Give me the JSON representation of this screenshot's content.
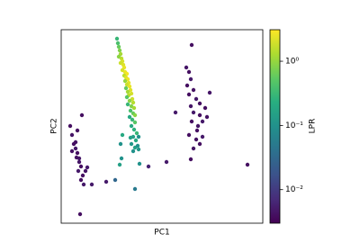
{
  "chart_data": {
    "type": "scatter",
    "xlabel": "PC1",
    "ylabel": "PC2",
    "clabel": "LPR",
    "xlim": [
      0,
      224
    ],
    "ylim": [
      0,
      215
    ],
    "colormap": "viridis",
    "cscale": "log",
    "clim": [
      0.003,
      3.1
    ],
    "cticks": [
      {
        "value": 0.01,
        "label": "10⁻²"
      },
      {
        "value": 0.1,
        "label": "10⁻¹"
      },
      {
        "value": 1,
        "label": "10⁰"
      }
    ],
    "x": [
      10,
      12,
      14,
      16,
      18,
      17,
      20,
      22,
      19,
      24,
      27,
      22,
      25,
      21,
      16,
      18,
      20,
      29,
      23,
      12,
      50,
      60,
      67,
      82,
      97,
      117,
      127,
      207,
      65,
      87,
      34,
      145,
      139,
      142,
      144,
      140,
      147,
      165,
      142,
      150,
      154,
      144,
      160,
      147,
      154,
      162,
      145,
      152,
      157,
      142,
      150,
      154,
      147,
      144,
      157,
      151,
      62,
      63,
      64,
      65,
      66,
      64,
      67,
      68,
      66,
      69,
      70,
      68,
      71,
      73,
      70,
      72,
      74,
      71,
      75,
      73,
      76,
      72,
      77,
      74,
      78,
      75,
      73,
      79,
      76,
      80,
      74,
      78,
      81,
      77,
      80,
      82,
      76,
      79,
      82,
      78,
      81,
      84,
      80,
      83,
      78,
      82,
      85,
      80,
      86,
      77,
      68,
      66,
      86
    ],
    "y": [
      108,
      98,
      88,
      83,
      78,
      73,
      68,
      63,
      58,
      53,
      58,
      48,
      43,
      10,
      90,
      103,
      72,
      62,
      120,
      80,
      46,
      48,
      72,
      38,
      63,
      68,
      123,
      65,
      65,
      66,
      43,
      198,
      173,
      168,
      160,
      153,
      148,
      145,
      143,
      138,
      133,
      130,
      128,
      123,
      120,
      118,
      113,
      108,
      113,
      98,
      93,
      88,
      83,
      71,
      96,
      103,
      205,
      200,
      196,
      192,
      188,
      185,
      183,
      180,
      178,
      176,
      173,
      170,
      168,
      166,
      164,
      162,
      160,
      158,
      156,
      154,
      152,
      150,
      148,
      146,
      144,
      142,
      140,
      138,
      136,
      134,
      132,
      130,
      128,
      125,
      122,
      120,
      118,
      115,
      112,
      108,
      104,
      100,
      96,
      92,
      88,
      84,
      86,
      80,
      82,
      95,
      98,
      88,
      96
    ],
    "c": [
      0.004,
      0.0045,
      0.004,
      0.005,
      0.004,
      0.0042,
      0.0045,
      0.004,
      0.005,
      0.004,
      0.0045,
      0.004,
      0.005,
      0.004,
      0.0042,
      0.004,
      0.0045,
      0.005,
      0.004,
      0.0042,
      0.005,
      0.03,
      0.1,
      0.05,
      0.006,
      0.005,
      0.005,
      0.004,
      0.15,
      0.1,
      0.005,
      0.004,
      0.0045,
      0.004,
      0.005,
      0.004,
      0.0042,
      0.0045,
      0.004,
      0.005,
      0.004,
      0.0045,
      0.004,
      0.005,
      0.004,
      0.0042,
      0.004,
      0.0045,
      0.005,
      0.004,
      0.0042,
      0.004,
      0.0045,
      0.004,
      0.005,
      0.004,
      0.3,
      0.4,
      0.6,
      0.8,
      1.2,
      0.9,
      1.5,
      2,
      1.8,
      2.2,
      2.5,
      2,
      2.5,
      2.8,
      1.5,
      2.2,
      2.6,
      1,
      2.4,
      1.8,
      2.5,
      0.6,
      2.2,
      1.2,
      2,
      1.5,
      0.5,
      1.8,
      0.9,
      1.4,
      0.3,
      0.8,
      1.2,
      0.4,
      0.6,
      0.9,
      0.2,
      0.3,
      0.5,
      0.2,
      0.25,
      0.3,
      0.15,
      0.2,
      0.12,
      0.15,
      0.1,
      0.1,
      0.12,
      0.15,
      0.2,
      0.1,
      0.1
    ]
  }
}
